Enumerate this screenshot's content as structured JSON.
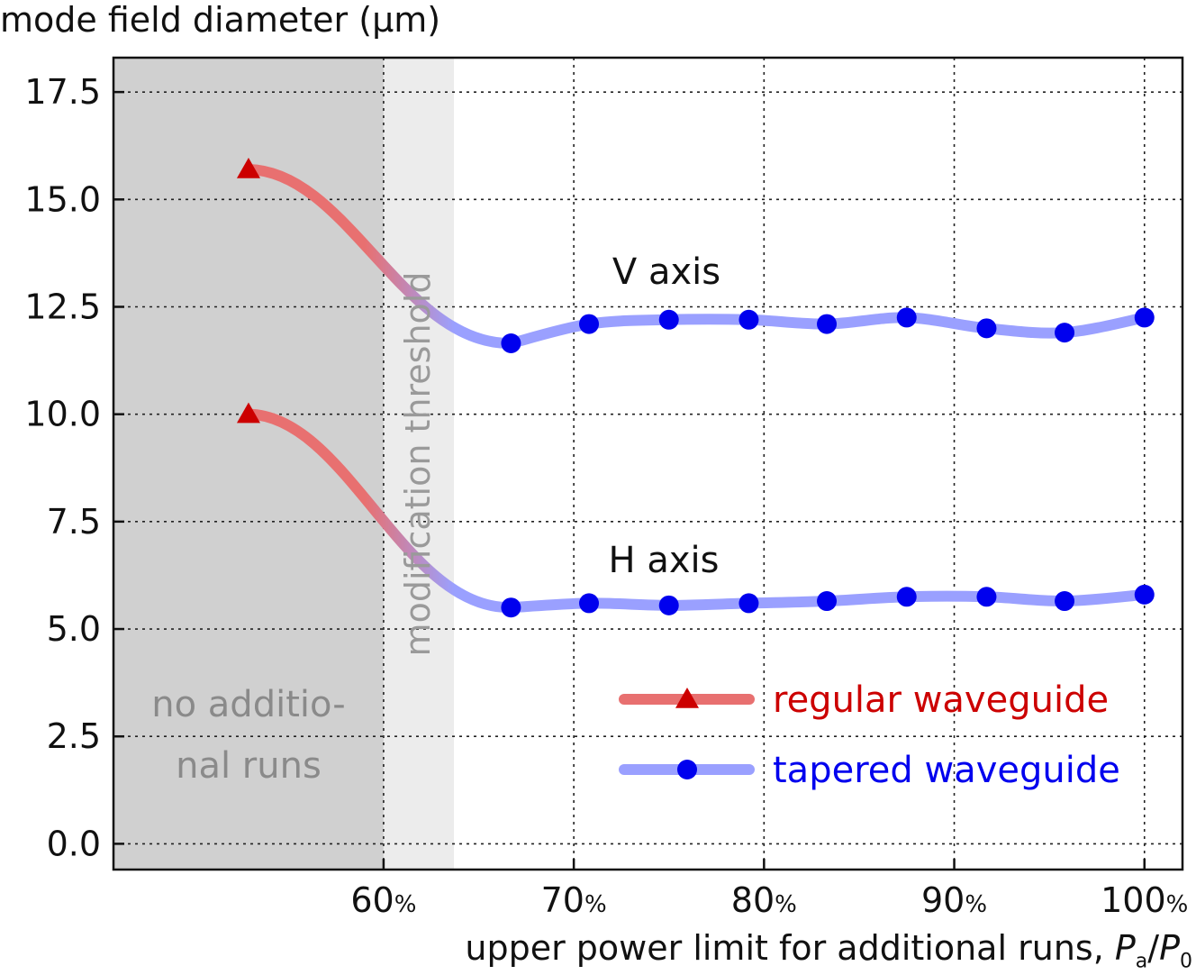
{
  "chart_data": {
    "type": "line",
    "ylabel": "mode field diameter (µm)",
    "xlabel": {
      "text": "upper power limit for additional runs, ",
      "symbol": "P",
      "numerator_sub": "a",
      "slash": "/",
      "denominator_sub": "0"
    },
    "ylim": [
      -0.6,
      18.3
    ],
    "xlim": [
      45.8,
      102
    ],
    "yticks": [
      0.0,
      2.5,
      5.0,
      7.5,
      10.0,
      12.5,
      15.0,
      17.5
    ],
    "ytick_labels": [
      "0.0",
      "2.5",
      "5.0",
      "7.5",
      "10.0",
      "12.5",
      "15.0",
      "17.5"
    ],
    "xticks": [
      60,
      70,
      80,
      90,
      100
    ],
    "xtick_labels": [
      "60",
      "70",
      "80",
      "90",
      "100"
    ],
    "xtick_unit": "%",
    "grid": true,
    "regions": [
      {
        "name": "no-runs",
        "x_range": [
          45.8,
          60
        ],
        "color": "#d0d0d0",
        "label_lines": [
          "no additio-",
          "nal runs"
        ]
      },
      {
        "name": "threshold",
        "x_range": [
          60,
          63.7
        ],
        "color": "#ececec",
        "label": "modification threshold"
      }
    ],
    "annotations": [
      "V axis",
      "H axis"
    ],
    "series": [
      {
        "name": "regular waveguide",
        "color": "#e87070",
        "marker": "triangle",
        "marker_color": "#cc0000",
        "label_color": "#cc0000",
        "groups": [
          {
            "axis": "V",
            "x": [
              52.9
            ],
            "y": [
              15.7
            ]
          },
          {
            "axis": "H",
            "x": [
              52.9
            ],
            "y": [
              10.0
            ]
          }
        ]
      },
      {
        "name": "tapered waveguide",
        "color": "#9aa0ff",
        "marker": "circle",
        "marker_color": "#0000ee",
        "label_color": "#0000ee",
        "groups": [
          {
            "axis": "V",
            "x": [
              66.7,
              70.8,
              75.0,
              79.2,
              83.3,
              87.5,
              91.7,
              95.8,
              100.0
            ],
            "y": [
              11.65,
              12.1,
              12.2,
              12.2,
              12.1,
              12.25,
              12.0,
              11.9,
              12.25
            ]
          },
          {
            "axis": "H",
            "x": [
              66.7,
              70.8,
              75.0,
              79.2,
              83.3,
              87.5,
              91.7,
              95.8,
              100.0
            ],
            "y": [
              5.5,
              5.6,
              5.55,
              5.6,
              5.65,
              5.75,
              5.75,
              5.65,
              5.8
            ]
          }
        ]
      }
    ]
  }
}
